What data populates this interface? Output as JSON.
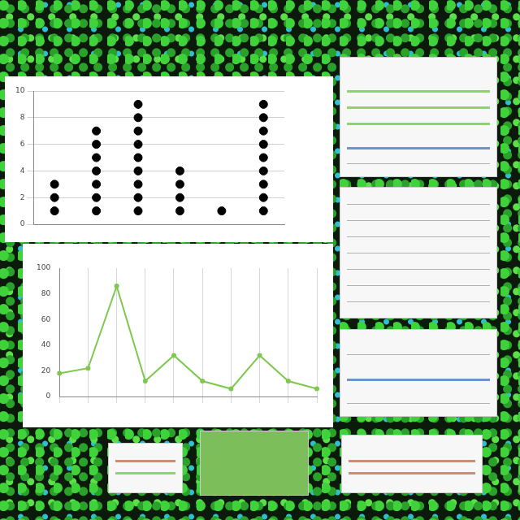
{
  "chart_data": [
    {
      "type": "dot",
      "categories": [
        null,
        null,
        null,
        null,
        null,
        null
      ],
      "values": [
        3,
        7,
        9,
        4,
        1,
        9
      ],
      "color": "#000000",
      "ylim": [
        0,
        10
      ],
      "yticks": [
        0,
        2,
        4,
        6,
        8,
        10
      ],
      "grid": "y",
      "tick_labels": "y"
    },
    {
      "type": "line",
      "categories": [
        null,
        null,
        null,
        null,
        null,
        null,
        null,
        null,
        null,
        null
      ],
      "values": [
        18,
        22,
        86,
        12,
        32,
        12,
        6,
        32,
        12,
        6
      ],
      "color": "#7ec850",
      "ylim": [
        0,
        100
      ],
      "yticks": [
        0,
        20,
        40,
        60,
        80,
        100
      ],
      "grid": "x",
      "tick_labels": "y"
    }
  ]
}
